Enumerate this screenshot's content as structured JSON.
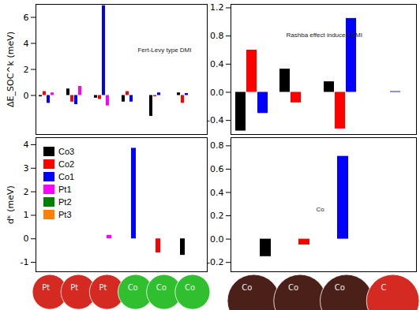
{
  "chart_data": [
    {
      "type": "bar",
      "y_label": "ΔE_SOC^k (meV)",
      "annotation": "Fert-Levy type DMI",
      "categories": [
        "Pt",
        "Pt",
        "Pt",
        "Co",
        "Co",
        "Co"
      ],
      "series": [
        {
          "name": "Co3",
          "color": "#000000",
          "values": [
            -0.1,
            0.5,
            -0.2,
            -0.5,
            -1.6,
            0.2
          ]
        },
        {
          "name": "Co2",
          "color": "#ff0000",
          "values": [
            0.3,
            -0.5,
            -0.3,
            0.3,
            -0.1,
            -0.6
          ]
        },
        {
          "name": "Co1",
          "color": "#0000ff",
          "values": [
            -0.6,
            -0.7,
            6.9,
            -0.5,
            0.2,
            0.15
          ]
        },
        {
          "name": "Pt1",
          "color": "#ff00ff",
          "values": [
            0.2,
            0.7,
            -0.8,
            0,
            0,
            0
          ]
        },
        {
          "name": "Pt2",
          "color": "#008000",
          "values": [
            0,
            0,
            0,
            0,
            0,
            0
          ]
        },
        {
          "name": "Pt3",
          "color": "#ff8000",
          "values": [
            0,
            0,
            0,
            0,
            0,
            0
          ]
        }
      ],
      "ylim": [
        -3,
        7
      ],
      "yticks": [
        0,
        2,
        4,
        6
      ],
      "tick_labels": "y"
    },
    {
      "type": "bar",
      "annotation": "Rashba effect induced DMI",
      "categories": [
        "Co",
        "Co",
        "Co",
        "C"
      ],
      "series": [
        {
          "name": "Co3",
          "color": "#000000",
          "values": [
            -0.55,
            0.33,
            0.15,
            0
          ]
        },
        {
          "name": "Co2",
          "color": "#ff0000",
          "values": [
            0.6,
            -0.15,
            -0.52,
            0
          ]
        },
        {
          "name": "Co1",
          "color": "#0000ff",
          "values": [
            -0.3,
            0,
            1.05,
            0.01
          ]
        }
      ],
      "ylim": [
        -0.6,
        1.25
      ],
      "yticks": [
        -0.4,
        {
          "value": 0,
          "label": "0.0"
        },
        0.4,
        0.8,
        1.2
      ],
      "tick_labels": "y"
    },
    {
      "type": "bar",
      "stacked": true,
      "y_label": "dᵏ (meV)",
      "legend": "top-left",
      "categories": [
        "Pt",
        "Pt",
        "Pt",
        "Co",
        "Co",
        "Co"
      ],
      "series": [
        {
          "name": "Co3",
          "color": "#000000",
          "values": [
            null,
            null,
            null,
            null,
            null,
            -0.7
          ]
        },
        {
          "name": "Co2",
          "color": "#ff0000",
          "values": [
            null,
            null,
            null,
            null,
            -0.6,
            null
          ]
        },
        {
          "name": "Co1",
          "color": "#0000ff",
          "values": [
            null,
            null,
            null,
            3.85,
            null,
            null
          ]
        },
        {
          "name": "Pt1",
          "color": "#ff00ff",
          "values": [
            null,
            null,
            0.15,
            null,
            null,
            null
          ]
        },
        {
          "name": "Pt2",
          "color": "#008000",
          "values": [
            null,
            0,
            null,
            null,
            null,
            null
          ]
        },
        {
          "name": "Pt3",
          "color": "#ff8000",
          "values": [
            0,
            null,
            null,
            null,
            null,
            null
          ]
        }
      ],
      "ylim": [
        -1.4,
        4.3
      ],
      "yticks": [
        -1,
        0,
        1,
        2,
        3,
        4
      ],
      "tick_labels": "y"
    },
    {
      "type": "bar",
      "stacked": true,
      "annotation": "Co",
      "categories": [
        "Co",
        "Co",
        "Co",
        "C"
      ],
      "series": [
        {
          "name": "Co3",
          "color": "#000000",
          "values": [
            -0.15,
            null,
            null,
            null
          ]
        },
        {
          "name": "Co2",
          "color": "#ff0000",
          "values": [
            null,
            -0.05,
            null,
            null
          ]
        },
        {
          "name": "Co1",
          "color": "#0000ff",
          "values": [
            null,
            null,
            0.71,
            null
          ]
        }
      ],
      "ylim": [
        -0.28,
        0.87
      ],
      "yticks": [
        -0.2,
        {
          "value": 0,
          "label": "0.0"
        },
        0.2,
        0.4,
        0.6,
        0.8
      ],
      "tick_labels": "y"
    }
  ]
}
